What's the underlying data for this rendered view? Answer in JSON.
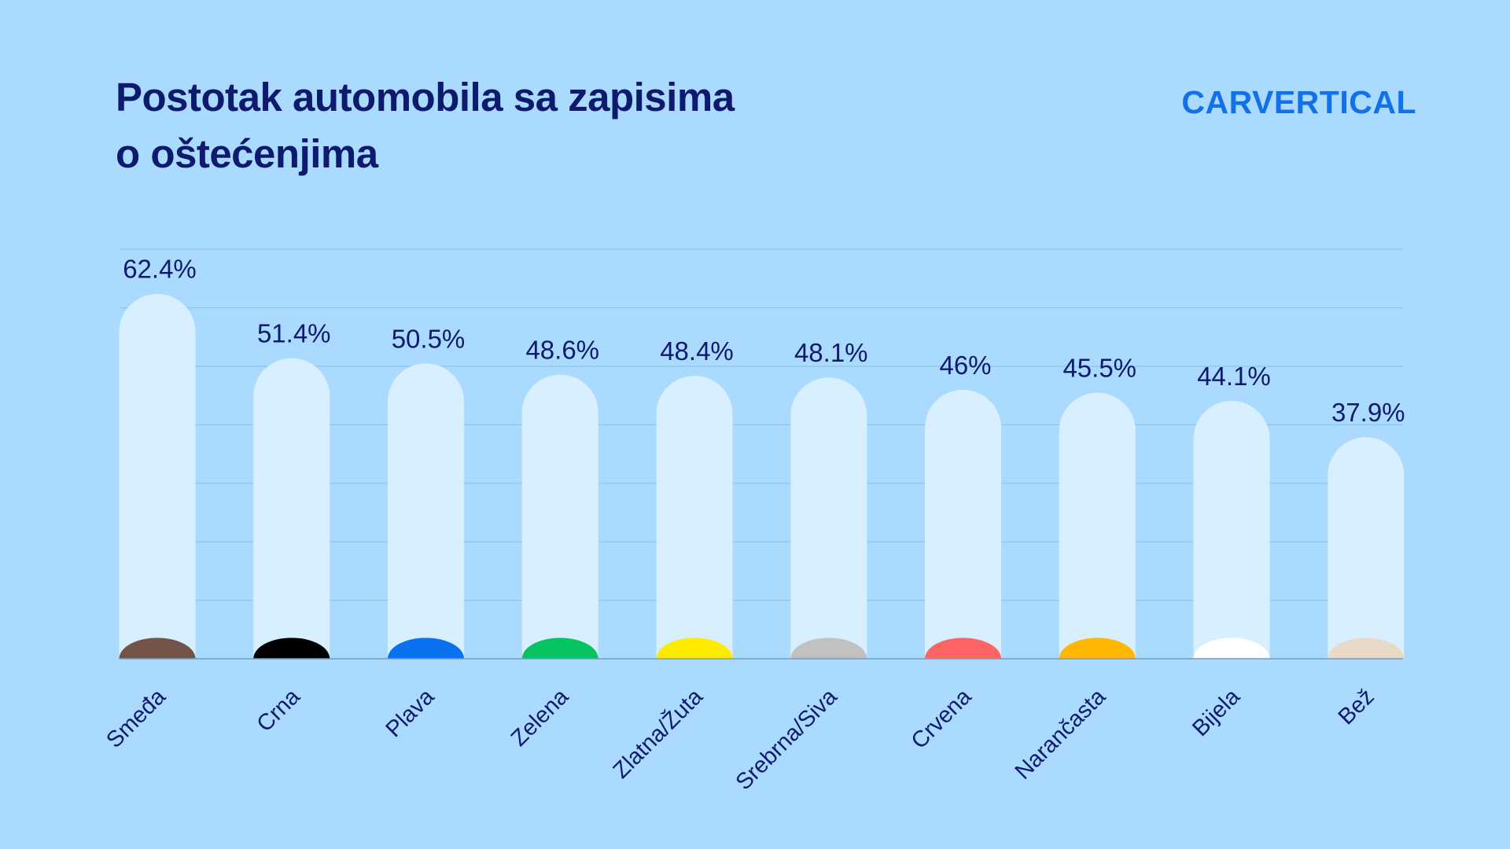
{
  "header": {
    "title_line1": "Postotak automobila sa zapisima",
    "title_line2": "o oštećenjima",
    "brand": "CARVERTICAL"
  },
  "colors": {
    "background": "#aadbff",
    "bar": "#d7efff",
    "text": "#0d1a6e",
    "brand": "#1270e8"
  },
  "chart_data": {
    "type": "bar",
    "title": "Postotak automobila sa zapisima o oštećenjima",
    "xlabel": "",
    "ylabel": "",
    "ylim": [
      0,
      70
    ],
    "grid": true,
    "categories": [
      "Smeđa",
      "Crna",
      "Plava",
      "Zelena",
      "Zlatna/Žuta",
      "Srebrna/Siva",
      "Crvena",
      "Narančasta",
      "Bijela",
      "Bež"
    ],
    "values": [
      62.4,
      51.4,
      50.5,
      48.6,
      48.4,
      48.1,
      46,
      45.5,
      44.1,
      37.9
    ],
    "value_labels": [
      "62.4%",
      "51.4%",
      "50.5%",
      "48.6%",
      "48.4%",
      "48.1%",
      "46%",
      "45.5%",
      "44.1%",
      "37.9%"
    ],
    "swatch_colors": [
      "#725548",
      "#000000",
      "#0a72f0",
      "#05c563",
      "#ffeb00",
      "#c1c1c1",
      "#ff6464",
      "#ffb703",
      "#ffffff",
      "#e8dac8"
    ]
  }
}
